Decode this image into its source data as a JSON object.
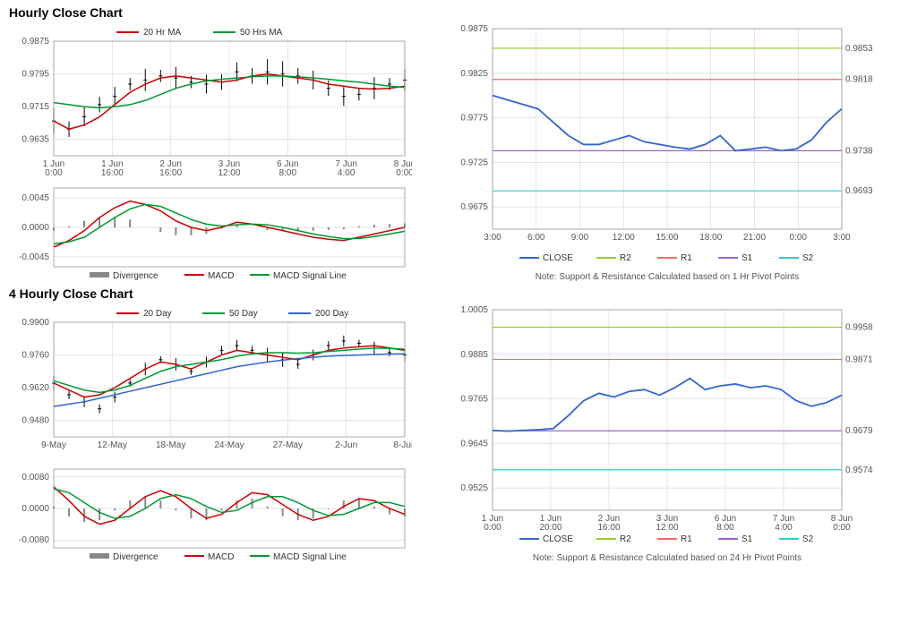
{
  "sections": [
    {
      "title": "Hourly Close Chart",
      "left_main": {
        "type": "price-ma",
        "ylim": [
          0.9595,
          0.9875
        ],
        "yticks": [
          0.9635,
          0.9715,
          0.9795,
          0.9875
        ],
        "xticks": [
          "1 Jun\n0:00",
          "1 Jun\n16:00",
          "2 Jun\n16:00",
          "3 Jun\n12:00",
          "6 Jun\n8:00",
          "7 Jun\n4:00",
          "8 Jun\n0:00"
        ],
        "price_color": "#000000",
        "ma1": {
          "label": "20 Hr MA",
          "color": "#cc0000",
          "data": [
            0.968,
            0.966,
            0.967,
            0.969,
            0.972,
            0.975,
            0.977,
            0.9785,
            0.979,
            0.9785,
            0.978,
            0.9775,
            0.978,
            0.979,
            0.9795,
            0.979,
            0.9785,
            0.978,
            0.977,
            0.9765,
            0.976,
            0.9758,
            0.976,
            0.9765
          ]
        },
        "ma2": {
          "label": "50 Hrs MA",
          "color": "#009933",
          "data": [
            0.9725,
            0.972,
            0.9715,
            0.9712,
            0.9715,
            0.972,
            0.973,
            0.9745,
            0.976,
            0.977,
            0.9778,
            0.9782,
            0.9785,
            0.9788,
            0.979,
            0.979,
            0.9788,
            0.9785,
            0.9782,
            0.9778,
            0.9775,
            0.977,
            0.9765,
            0.9762
          ]
        },
        "price": [
          0.968,
          0.966,
          0.969,
          0.972,
          0.974,
          0.977,
          0.978,
          0.979,
          0.9785,
          0.9775,
          0.977,
          0.9775,
          0.98,
          0.979,
          0.98,
          0.9795,
          0.979,
          0.978,
          0.976,
          0.974,
          0.9745,
          0.976,
          0.977,
          0.978
        ]
      },
      "left_macd": {
        "type": "macd",
        "ylim": [
          -0.006,
          0.006
        ],
        "yticks": [
          -0.0045,
          0.0,
          0.0045
        ],
        "legend": [
          {
            "label": "Divergence",
            "color": "#888888",
            "type": "bar"
          },
          {
            "label": "MACD",
            "color": "#cc0000",
            "type": "line"
          },
          {
            "label": "MACD Signal Line",
            "color": "#009933",
            "type": "line"
          }
        ],
        "macd": [
          -0.003,
          -0.002,
          -0.0005,
          0.0015,
          0.003,
          0.004,
          0.0035,
          0.0025,
          0.001,
          0.0,
          -0.0005,
          0.0,
          0.0008,
          0.0005,
          0.0,
          -0.0005,
          -0.001,
          -0.0015,
          -0.0018,
          -0.002,
          -0.0015,
          -0.001,
          -0.0005,
          0.0
        ],
        "signal": [
          -0.0025,
          -0.0022,
          -0.0015,
          0.0,
          0.0015,
          0.0028,
          0.0035,
          0.0032,
          0.0022,
          0.0012,
          0.0005,
          0.0002,
          0.0004,
          0.0005,
          0.0004,
          0.0,
          -0.0005,
          -0.001,
          -0.0014,
          -0.0017,
          -0.0017,
          -0.0014,
          -0.001,
          -0.0006
        ],
        "div": [
          -0.0005,
          0.0002,
          0.001,
          0.0015,
          0.0015,
          0.0012,
          0.0,
          -0.0007,
          -0.0012,
          -0.0012,
          -0.001,
          -0.0002,
          0.0004,
          0.0,
          -0.0004,
          -0.0005,
          -0.0005,
          -0.0005,
          -0.0004,
          -0.0003,
          0.0002,
          0.0004,
          0.0005,
          0.0006
        ]
      },
      "right": {
        "type": "sr",
        "ylim": [
          0.965,
          0.9875
        ],
        "yticks": [
          0.9675,
          0.9725,
          0.9775,
          0.9825,
          0.9875
        ],
        "xticks": [
          "3:00",
          "6:00",
          "9:00",
          "12:00",
          "15:00",
          "18:00",
          "21:00",
          "0:00",
          "3:00"
        ],
        "lines": [
          {
            "key": "R2",
            "color": "#99cc33",
            "value": 0.9853,
            "label": "0.9853"
          },
          {
            "key": "R1",
            "color": "#ff6666",
            "value": 0.9818,
            "label": "0.9818"
          },
          {
            "key": "S1",
            "color": "#9966cc",
            "value": 0.9738,
            "label": "0.9738"
          },
          {
            "key": "S2",
            "color": "#33cccc",
            "value": 0.9693,
            "label": "0.9693"
          }
        ],
        "close": {
          "label": "CLOSE",
          "color": "#3366cc",
          "data": [
            0.98,
            0.9795,
            0.979,
            0.9785,
            0.977,
            0.9755,
            0.9745,
            0.9745,
            0.975,
            0.9755,
            0.9748,
            0.9745,
            0.9742,
            0.974,
            0.9745,
            0.9755,
            0.9738,
            0.974,
            0.9742,
            0.9738,
            0.974,
            0.975,
            0.977,
            0.9785
          ]
        },
        "legend": [
          "CLOSE",
          "R2",
          "R1",
          "S1",
          "S2"
        ],
        "legend_colors": [
          "#3366cc",
          "#99cc33",
          "#ff6666",
          "#9966cc",
          "#33cccc"
        ],
        "note": "Note: Support & Resistance Calculated based on 1 Hr Pivot Points"
      }
    },
    {
      "title": "4 Hourly Close Chart",
      "left_main": {
        "type": "price-ma",
        "ylim": [
          0.941,
          0.99
        ],
        "yticks": [
          0.948,
          0.962,
          0.976,
          0.99
        ],
        "xticks": [
          "9-May",
          "12-May",
          "18-May",
          "24-May",
          "27-May",
          "2-Jun",
          "8-Jun"
        ],
        "price_color": "#000000",
        "ma1": {
          "label": "20 Day",
          "color": "#cc0000",
          "data": [
            0.964,
            0.961,
            0.958,
            0.959,
            0.962,
            0.966,
            0.97,
            0.973,
            0.972,
            0.97,
            0.973,
            0.976,
            0.978,
            0.977,
            0.976,
            0.975,
            0.974,
            0.976,
            0.978,
            0.979,
            0.9795,
            0.98,
            0.979,
            0.978
          ]
        },
        "ma2": {
          "label": "50 Day",
          "color": "#009933",
          "data": [
            0.965,
            0.963,
            0.961,
            0.96,
            0.961,
            0.963,
            0.966,
            0.969,
            0.971,
            0.972,
            0.973,
            0.974,
            0.9755,
            0.9765,
            0.977,
            0.977,
            0.9768,
            0.977,
            0.9775,
            0.978,
            0.9785,
            0.979,
            0.9788,
            0.9785
          ]
        },
        "ma3": {
          "label": "200 Day",
          "color": "#3366cc",
          "data": [
            0.954,
            0.955,
            0.956,
            0.9575,
            0.959,
            0.9605,
            0.962,
            0.9635,
            0.965,
            0.9665,
            0.968,
            0.9695,
            0.971,
            0.972,
            0.973,
            0.9738,
            0.9745,
            0.975,
            0.9755,
            0.9758,
            0.976,
            0.9762,
            0.9764,
            0.9765
          ]
        },
        "price": [
          0.964,
          0.959,
          0.956,
          0.953,
          0.958,
          0.964,
          0.97,
          0.974,
          0.972,
          0.969,
          0.973,
          0.978,
          0.98,
          0.978,
          0.976,
          0.974,
          0.972,
          0.976,
          0.98,
          0.982,
          0.981,
          0.979,
          0.977,
          0.976
        ]
      },
      "left_macd": {
        "type": "macd",
        "ylim": [
          -0.01,
          0.01
        ],
        "yticks": [
          -0.008,
          0.0,
          0.008
        ],
        "legend": [
          {
            "label": "Divergence",
            "color": "#888888",
            "type": "bar"
          },
          {
            "label": "MACD",
            "color": "#cc0000",
            "type": "line"
          },
          {
            "label": "MACD Signal Line",
            "color": "#009933",
            "type": "line"
          }
        ],
        "macd": [
          0.0055,
          0.002,
          -0.002,
          -0.004,
          -0.003,
          0.0,
          0.003,
          0.0045,
          0.003,
          0.0,
          -0.0025,
          -0.0015,
          0.0015,
          0.004,
          0.0035,
          0.001,
          -0.0015,
          -0.003,
          -0.002,
          0.0005,
          0.0025,
          0.002,
          0.0,
          -0.0015
        ],
        "signal": [
          0.005,
          0.004,
          0.0015,
          -0.001,
          -0.0025,
          -0.002,
          0.0,
          0.0025,
          0.0035,
          0.0025,
          0.0005,
          -0.001,
          -0.0005,
          0.0015,
          0.003,
          0.003,
          0.0015,
          -0.0005,
          -0.0018,
          -0.0015,
          0.0,
          0.0015,
          0.0015,
          0.0005
        ],
        "div": [
          0.0005,
          -0.002,
          -0.0035,
          -0.003,
          -0.0005,
          0.002,
          0.003,
          0.002,
          -0.0005,
          -0.0025,
          -0.003,
          -0.0005,
          0.002,
          0.0025,
          0.0005,
          -0.002,
          -0.003,
          -0.0025,
          -0.0002,
          0.002,
          0.0025,
          0.0005,
          -0.0015,
          -0.002
        ]
      },
      "right": {
        "type": "sr",
        "ylim": [
          0.9465,
          1.0005
        ],
        "yticks": [
          0.9525,
          0.9645,
          0.9765,
          0.9885,
          1.0005
        ],
        "xticks": [
          "1 Jun\n0:00",
          "1 Jun\n20:00",
          "2 Jun\n16:00",
          "3 Jun\n12:00",
          "6 Jun\n8:00",
          "7 Jun\n4:00",
          "8 Jun\n0:00"
        ],
        "lines": [
          {
            "key": "R2",
            "color": "#99cc33",
            "value": 0.9958,
            "label": "0.9958"
          },
          {
            "key": "R1",
            "color": "#ff6666",
            "value": 0.9871,
            "label": "0.9871"
          },
          {
            "key": "S1",
            "color": "#9966cc",
            "value": 0.9679,
            "label": "0.9679"
          },
          {
            "key": "S2",
            "color": "#33cccc",
            "value": 0.9574,
            "label": "0.9574"
          }
        ],
        "close": {
          "label": "CLOSE",
          "color": "#3366cc",
          "data": [
            0.968,
            0.9678,
            0.968,
            0.9682,
            0.9685,
            0.972,
            0.976,
            0.978,
            0.977,
            0.9785,
            0.979,
            0.9775,
            0.9795,
            0.982,
            0.979,
            0.98,
            0.9805,
            0.9795,
            0.98,
            0.979,
            0.976,
            0.9745,
            0.9755,
            0.9775
          ]
        },
        "legend": [
          "CLOSE",
          "R2",
          "R1",
          "S1",
          "S2"
        ],
        "legend_colors": [
          "#3366cc",
          "#99cc33",
          "#ff6666",
          "#9966cc",
          "#33cccc"
        ],
        "note": "Note: Support & Resistance Calculated based on 24 Hr Pivot Points"
      }
    }
  ],
  "grid_color": "#cccccc",
  "axis_color": "#888888",
  "bg": "#ffffff"
}
